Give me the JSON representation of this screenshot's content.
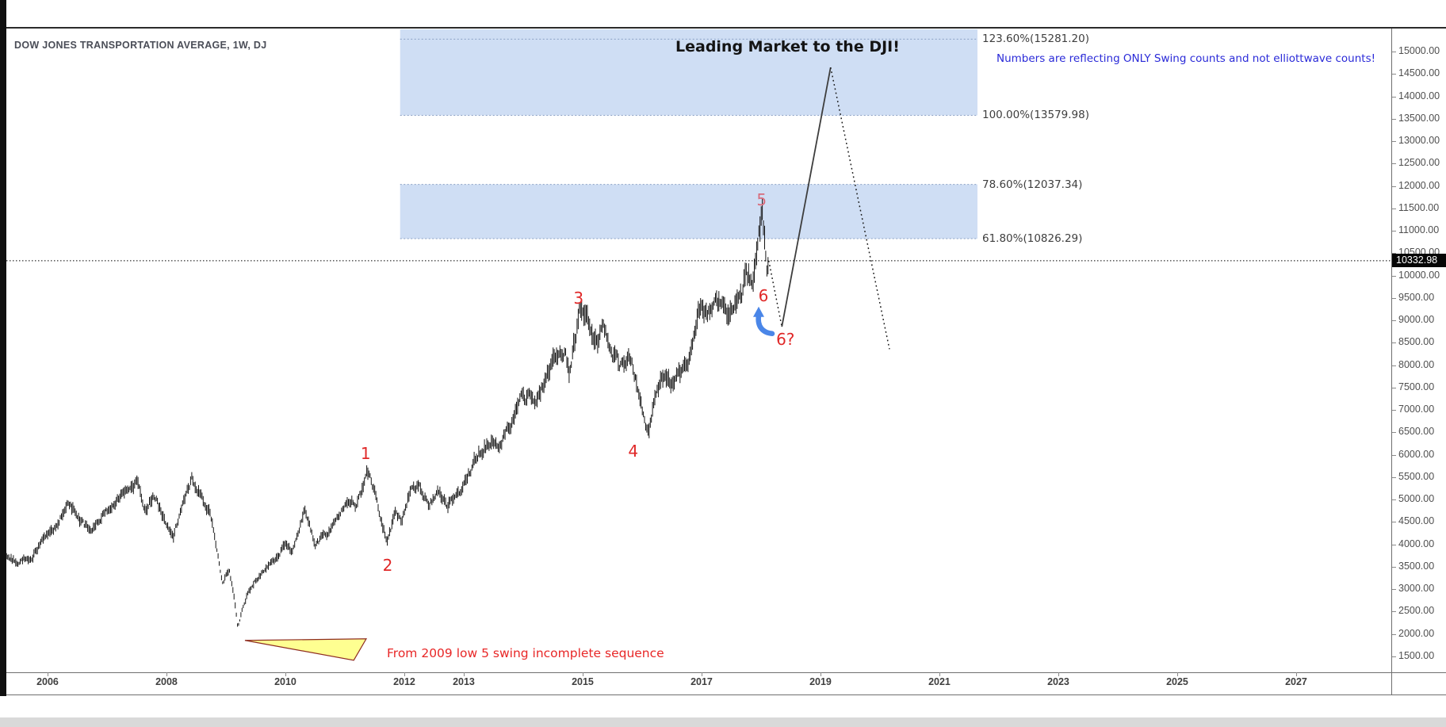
{
  "legend": {
    "title": "DOW JONES TRANSPORTATION AVERAGE, 1W, DJ"
  },
  "annotations": {
    "headline": "Leading Market to the DJI!",
    "blue_note": "Numbers are reflecting ONLY Swing counts and not elliottwave counts!",
    "red_note": "From 2009 low 5 swing incomplete sequence"
  },
  "price_axis": {
    "last_price_label": "10332.98",
    "decimals": 2,
    "tick_values": [
      15000,
      14500,
      14000,
      13500,
      13000,
      12500,
      12000,
      11500,
      11000,
      10500,
      10000,
      9500,
      9000,
      8500,
      8000,
      7500,
      7000,
      6500,
      6000,
      5500,
      5000,
      4500,
      4000,
      3500,
      3000,
      2500,
      2000,
      1500
    ]
  },
  "time_axis": {
    "labels": [
      2006,
      2008,
      2010,
      2012,
      2013,
      2015,
      2017,
      2019,
      2021,
      2023,
      2025,
      2027
    ]
  },
  "colors": {
    "bars": "#141414",
    "zone_fill": "rgba(130,168,226,0.38)",
    "fib_line": "#8aa0c4",
    "price_line": "#000000",
    "projection_solid": "#3d3d3d",
    "projection_dotted": "#1a1a1a",
    "swing_red": "#e02828",
    "swing_pink": "#d76c7c",
    "arrow_blue": "#4a86e8",
    "triangle_fill": "#feff85",
    "triangle_stroke": "#8e2c20",
    "badge_bg": "#060606"
  },
  "chart_data": {
    "type": "bar",
    "title": "DOW JONES TRANSPORTATION AVERAGE, 1W, DJ",
    "x_axis": {
      "unit": "year",
      "min_year": 2005.307,
      "max_year": 2028.6,
      "visible_labels": [
        2006,
        2008,
        2010,
        2012,
        2013,
        2015,
        2017,
        2019,
        2021,
        2023,
        2025,
        2027
      ]
    },
    "y_axis": {
      "min": 1146,
      "max": 15517,
      "tick_step": 500,
      "first_tick": 1500,
      "last_tick": 15000,
      "grid": false
    },
    "last_price": 10332.98,
    "fib_levels": [
      {
        "label": "123.60%(15281.20)",
        "pct": 123.6,
        "price": 15281.2
      },
      {
        "label": "100.00%(13579.98)",
        "pct": 100.0,
        "price": 13579.98
      },
      {
        "label": "78.60%(12037.34)",
        "pct": 78.6,
        "price": 12037.34
      },
      {
        "label": "61.80%(10826.29)",
        "pct": 61.8,
        "price": 10826.29
      }
    ],
    "fib_zones": [
      {
        "price_top": 15600,
        "price_bottom": 13579.98
      },
      {
        "price_top": 12037.34,
        "price_bottom": 10826.29
      }
    ],
    "fib_zone_year_span": [
      2011.93,
      2021.64
    ],
    "swing_labels": [
      {
        "text": "1",
        "year": 2011.35,
        "price": 6032,
        "tone": "red"
      },
      {
        "text": "2",
        "year": 2011.72,
        "price": 3537,
        "tone": "red"
      },
      {
        "text": "3",
        "year": 2014.93,
        "price": 9500,
        "tone": "red"
      },
      {
        "text": "4",
        "year": 2015.85,
        "price": 6085,
        "tone": "red"
      },
      {
        "text": "5",
        "year": 2018.01,
        "price": 11695,
        "tone": "pink"
      },
      {
        "text": "6",
        "year": 2018.04,
        "price": 9554,
        "tone": "red"
      },
      {
        "text": "6?",
        "year": 2018.41,
        "price": 8580,
        "tone": "red"
      }
    ],
    "projections": {
      "dotted_down_1": [
        [
          2018.13,
          10332.98
        ],
        [
          2018.35,
          8860
        ]
      ],
      "solid_up": [
        [
          2018.35,
          8860
        ],
        [
          2019.17,
          14650
        ]
      ],
      "dotted_down_2": [
        [
          2019.17,
          14650
        ],
        [
          2020.16,
          8360
        ]
      ]
    },
    "shapes": {
      "yellow_triangle": [
        [
          2009.32,
          1858
        ],
        [
          2011.36,
          1893
        ],
        [
          2011.15,
          1415
        ]
      ],
      "blue_arrow_at": {
        "year": 2018.04,
        "price": 8990
      }
    },
    "weekly_anchors": [
      [
        2005.31,
        3700
      ],
      [
        2005.5,
        3620
      ],
      [
        2005.75,
        3750
      ],
      [
        2005.95,
        4150
      ],
      [
        2006.1,
        4350
      ],
      [
        2006.35,
        4950
      ],
      [
        2006.55,
        4500
      ],
      [
        2006.75,
        4300
      ],
      [
        2006.95,
        4700
      ],
      [
        2007.2,
        5050
      ],
      [
        2007.5,
        5350
      ],
      [
        2007.65,
        4750
      ],
      [
        2007.78,
        5150
      ],
      [
        2008.0,
        4450
      ],
      [
        2008.12,
        4200
      ],
      [
        2008.25,
        4800
      ],
      [
        2008.42,
        5480
      ],
      [
        2008.6,
        5050
      ],
      [
        2008.75,
        4600
      ],
      [
        2008.87,
        3700
      ],
      [
        2008.95,
        3100
      ],
      [
        2009.05,
        3450
      ],
      [
        2009.13,
        2950
      ],
      [
        2009.2,
        2180
      ],
      [
        2009.35,
        2850
      ],
      [
        2009.55,
        3300
      ],
      [
        2009.7,
        3550
      ],
      [
        2009.85,
        3700
      ],
      [
        2010.0,
        4050
      ],
      [
        2010.12,
        3820
      ],
      [
        2010.32,
        4720
      ],
      [
        2010.5,
        4000
      ],
      [
        2010.62,
        4150
      ],
      [
        2010.78,
        4350
      ],
      [
        2010.95,
        4800
      ],
      [
        2011.1,
        5000
      ],
      [
        2011.2,
        4850
      ],
      [
        2011.37,
        5560
      ],
      [
        2011.5,
        5250
      ],
      [
        2011.62,
        4450
      ],
      [
        2011.72,
        4060
      ],
      [
        2011.85,
        4700
      ],
      [
        2011.95,
        4550
      ],
      [
        2012.1,
        5200
      ],
      [
        2012.25,
        5300
      ],
      [
        2012.42,
        4900
      ],
      [
        2012.55,
        5150
      ],
      [
        2012.72,
        4880
      ],
      [
        2012.9,
        5050
      ],
      [
        2013.05,
        5500
      ],
      [
        2013.25,
        6050
      ],
      [
        2013.45,
        6300
      ],
      [
        2013.6,
        6200
      ],
      [
        2013.8,
        6700
      ],
      [
        2013.95,
        7250
      ],
      [
        2014.1,
        7300
      ],
      [
        2014.2,
        7050
      ],
      [
        2014.4,
        7850
      ],
      [
        2014.55,
        8150
      ],
      [
        2014.7,
        8350
      ],
      [
        2014.78,
        7800
      ],
      [
        2014.95,
        9280
      ],
      [
        2015.1,
        8900
      ],
      [
        2015.25,
        8600
      ],
      [
        2015.35,
        8850
      ],
      [
        2015.5,
        8300
      ],
      [
        2015.65,
        7950
      ],
      [
        2015.78,
        8300
      ],
      [
        2015.95,
        7300
      ],
      [
        2016.05,
        6800
      ],
      [
        2016.1,
        6480
      ],
      [
        2016.25,
        7400
      ],
      [
        2016.4,
        7850
      ],
      [
        2016.5,
        7550
      ],
      [
        2016.65,
        7850
      ],
      [
        2016.8,
        8100
      ],
      [
        2016.95,
        9250
      ],
      [
        2017.1,
        9050
      ],
      [
        2017.2,
        9300
      ],
      [
        2017.35,
        9450
      ],
      [
        2017.45,
        9000
      ],
      [
        2017.55,
        9250
      ],
      [
        2017.68,
        9550
      ],
      [
        2017.75,
        10100
      ],
      [
        2017.85,
        9800
      ],
      [
        2017.95,
        10800
      ],
      [
        2018.02,
        11400
      ],
      [
        2018.06,
        10700
      ],
      [
        2018.09,
        10150
      ],
      [
        2018.13,
        10333
      ]
    ]
  }
}
